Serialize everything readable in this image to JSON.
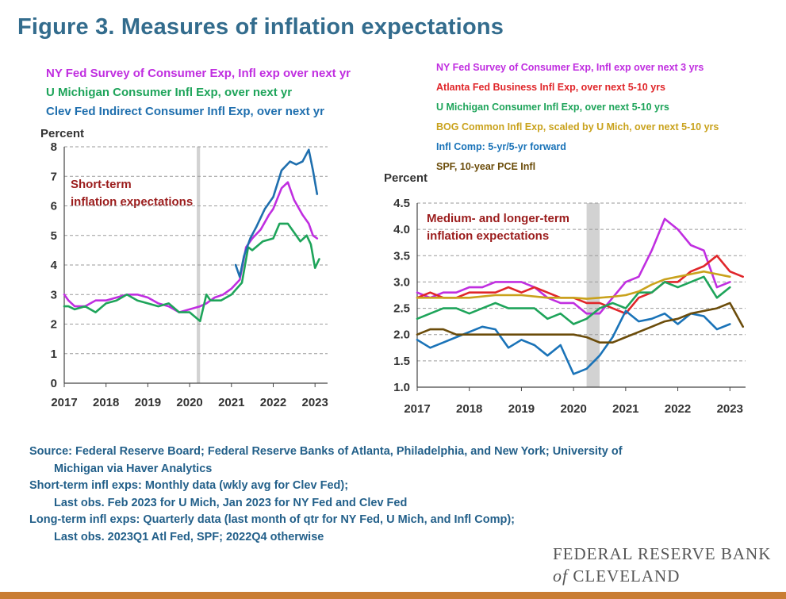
{
  "title": "Figure 3. Measures of inflation expectations",
  "colors": {
    "title": "#336c8d",
    "nyfed": "#c02ee0",
    "umich": "#1ea45a",
    "clev": "#1f6fae",
    "atl": "#e0262a",
    "bog": "#c9a21c",
    "infl_comp": "#1a73b8",
    "spf": "#6b4c0a",
    "annotation": "#9b1c1c",
    "recession": "#d2d2d2",
    "footer_bar": "#c97d33"
  },
  "chart_data": [
    {
      "type": "line",
      "id": "short",
      "ylabel": "Percent",
      "annotation": [
        "Short-term",
        "inflation expectations"
      ],
      "ylim": [
        0,
        8
      ],
      "yticks": [
        0,
        1,
        2,
        3,
        4,
        5,
        6,
        7,
        8
      ],
      "xlim": [
        2017,
        2023.3
      ],
      "xticks": [
        2017,
        2018,
        2019,
        2020,
        2021,
        2022,
        2023
      ],
      "grid": "dashed",
      "legend": "top-left",
      "recession": [
        2020.17,
        2020.25
      ],
      "series": [
        {
          "name": "NY Fed Survey of Consumer Exp, Infl exp over next yr",
          "color_key": "nyfed",
          "points": [
            [
              2017.0,
              3.0
            ],
            [
              2017.1,
              2.8
            ],
            [
              2017.25,
              2.6
            ],
            [
              2017.5,
              2.6
            ],
            [
              2017.75,
              2.8
            ],
            [
              2018.0,
              2.8
            ],
            [
              2018.25,
              2.9
            ],
            [
              2018.5,
              3.0
            ],
            [
              2018.75,
              3.0
            ],
            [
              2019.0,
              2.9
            ],
            [
              2019.25,
              2.7
            ],
            [
              2019.5,
              2.6
            ],
            [
              2019.75,
              2.4
            ],
            [
              2020.0,
              2.5
            ],
            [
              2020.25,
              2.6
            ],
            [
              2020.4,
              2.7
            ],
            [
              2020.6,
              2.9
            ],
            [
              2020.8,
              3.0
            ],
            [
              2021.0,
              3.2
            ],
            [
              2021.2,
              3.5
            ],
            [
              2021.35,
              4.6
            ],
            [
              2021.5,
              4.9
            ],
            [
              2021.7,
              5.2
            ],
            [
              2021.9,
              5.7
            ],
            [
              2022.0,
              5.9
            ],
            [
              2022.2,
              6.6
            ],
            [
              2022.35,
              6.8
            ],
            [
              2022.5,
              6.2
            ],
            [
              2022.7,
              5.7
            ],
            [
              2022.85,
              5.4
            ],
            [
              2022.95,
              5.0
            ],
            [
              2023.05,
              4.9
            ]
          ]
        },
        {
          "name": "U Michigan Consumer Infl Exp, over next yr",
          "color_key": "umich",
          "points": [
            [
              2017.0,
              2.6
            ],
            [
              2017.1,
              2.6
            ],
            [
              2017.25,
              2.5
            ],
            [
              2017.5,
              2.6
            ],
            [
              2017.75,
              2.4
            ],
            [
              2018.0,
              2.7
            ],
            [
              2018.25,
              2.8
            ],
            [
              2018.5,
              3.0
            ],
            [
              2018.75,
              2.8
            ],
            [
              2019.0,
              2.7
            ],
            [
              2019.25,
              2.6
            ],
            [
              2019.5,
              2.7
            ],
            [
              2019.75,
              2.4
            ],
            [
              2020.0,
              2.4
            ],
            [
              2020.25,
              2.1
            ],
            [
              2020.4,
              3.0
            ],
            [
              2020.5,
              2.8
            ],
            [
              2020.75,
              2.8
            ],
            [
              2021.0,
              3.0
            ],
            [
              2021.25,
              3.4
            ],
            [
              2021.4,
              4.6
            ],
            [
              2021.5,
              4.5
            ],
            [
              2021.75,
              4.8
            ],
            [
              2022.0,
              4.9
            ],
            [
              2022.15,
              5.4
            ],
            [
              2022.35,
              5.4
            ],
            [
              2022.5,
              5.1
            ],
            [
              2022.65,
              4.8
            ],
            [
              2022.8,
              5.0
            ],
            [
              2022.9,
              4.7
            ],
            [
              2023.0,
              3.9
            ],
            [
              2023.1,
              4.2
            ]
          ]
        },
        {
          "name": "Clev Fed Indirect Consumer Infl Exp, over next yr",
          "color_key": "clev",
          "points": [
            [
              2021.1,
              4.0
            ],
            [
              2021.2,
              3.6
            ],
            [
              2021.3,
              4.3
            ],
            [
              2021.45,
              4.9
            ],
            [
              2021.6,
              5.3
            ],
            [
              2021.8,
              5.9
            ],
            [
              2022.0,
              6.3
            ],
            [
              2022.2,
              7.2
            ],
            [
              2022.4,
              7.5
            ],
            [
              2022.55,
              7.4
            ],
            [
              2022.7,
              7.5
            ],
            [
              2022.85,
              7.9
            ],
            [
              2022.95,
              7.2
            ],
            [
              2023.05,
              6.4
            ]
          ]
        }
      ]
    },
    {
      "type": "line",
      "id": "long",
      "ylabel": "Percent",
      "annotation": [
        "Medium- and longer-term",
        "inflation expectations"
      ],
      "ylim": [
        1.0,
        4.5
      ],
      "yticks": [
        "1.0",
        "1.5",
        "2.0",
        "2.5",
        "3.0",
        "3.5",
        "4.0",
        "4.5"
      ],
      "xlim": [
        2017,
        2023.3
      ],
      "xticks": [
        2017,
        2018,
        2019,
        2020,
        2021,
        2022,
        2023
      ],
      "grid": "dashed",
      "legend": "top",
      "recession": [
        2020.25,
        2020.5
      ],
      "series": [
        {
          "name": "NY Fed Survey of Consumer Exp, Infl exp over next 3 yrs",
          "color_key": "nyfed",
          "points": [
            [
              2017.0,
              2.8
            ],
            [
              2017.25,
              2.7
            ],
            [
              2017.5,
              2.8
            ],
            [
              2017.75,
              2.8
            ],
            [
              2018.0,
              2.9
            ],
            [
              2018.25,
              2.9
            ],
            [
              2018.5,
              3.0
            ],
            [
              2018.75,
              3.0
            ],
            [
              2019.0,
              3.0
            ],
            [
              2019.25,
              2.9
            ],
            [
              2019.5,
              2.7
            ],
            [
              2019.75,
              2.6
            ],
            [
              2020.0,
              2.6
            ],
            [
              2020.25,
              2.4
            ],
            [
              2020.5,
              2.4
            ],
            [
              2020.75,
              2.7
            ],
            [
              2021.0,
              3.0
            ],
            [
              2021.25,
              3.1
            ],
            [
              2021.5,
              3.6
            ],
            [
              2021.75,
              4.2
            ],
            [
              2022.0,
              4.0
            ],
            [
              2022.25,
              3.7
            ],
            [
              2022.5,
              3.6
            ],
            [
              2022.75,
              2.9
            ],
            [
              2023.0,
              3.0
            ]
          ]
        },
        {
          "name": "Atlanta Fed Business Infl Exp, over next 5-10 yrs",
          "color_key": "atl",
          "points": [
            [
              2017.0,
              2.7
            ],
            [
              2017.25,
              2.8
            ],
            [
              2017.5,
              2.7
            ],
            [
              2017.75,
              2.7
            ],
            [
              2018.0,
              2.8
            ],
            [
              2018.25,
              2.8
            ],
            [
              2018.5,
              2.8
            ],
            [
              2018.75,
              2.9
            ],
            [
              2019.0,
              2.8
            ],
            [
              2019.25,
              2.9
            ],
            [
              2019.5,
              2.8
            ],
            [
              2019.75,
              2.7
            ],
            [
              2020.0,
              2.7
            ],
            [
              2020.25,
              2.6
            ],
            [
              2020.5,
              2.6
            ],
            [
              2020.75,
              2.5
            ],
            [
              2021.0,
              2.4
            ],
            [
              2021.25,
              2.7
            ],
            [
              2021.5,
              2.8
            ],
            [
              2021.75,
              3.0
            ],
            [
              2022.0,
              3.0
            ],
            [
              2022.25,
              3.2
            ],
            [
              2022.5,
              3.3
            ],
            [
              2022.75,
              3.5
            ],
            [
              2023.0,
              3.2
            ],
            [
              2023.25,
              3.1
            ]
          ]
        },
        {
          "name": "U Michigan Consumer Infl Exp, over next 5-10 yrs",
          "color_key": "umich",
          "points": [
            [
              2017.0,
              2.3
            ],
            [
              2017.25,
              2.4
            ],
            [
              2017.5,
              2.5
            ],
            [
              2017.75,
              2.5
            ],
            [
              2018.0,
              2.4
            ],
            [
              2018.25,
              2.5
            ],
            [
              2018.5,
              2.6
            ],
            [
              2018.75,
              2.5
            ],
            [
              2019.0,
              2.5
            ],
            [
              2019.25,
              2.5
            ],
            [
              2019.5,
              2.3
            ],
            [
              2019.75,
              2.4
            ],
            [
              2020.0,
              2.2
            ],
            [
              2020.25,
              2.3
            ],
            [
              2020.5,
              2.5
            ],
            [
              2020.75,
              2.6
            ],
            [
              2021.0,
              2.5
            ],
            [
              2021.25,
              2.8
            ],
            [
              2021.5,
              2.8
            ],
            [
              2021.75,
              3.0
            ],
            [
              2022.0,
              2.9
            ],
            [
              2022.25,
              3.0
            ],
            [
              2022.5,
              3.1
            ],
            [
              2022.75,
              2.7
            ],
            [
              2023.0,
              2.9
            ]
          ]
        },
        {
          "name": "BOG Common Infl Exp, scaled by U Mich, over next 5-10 yrs",
          "color_key": "bog",
          "points": [
            [
              2017.0,
              2.7
            ],
            [
              2017.5,
              2.7
            ],
            [
              2018.0,
              2.7
            ],
            [
              2018.5,
              2.75
            ],
            [
              2019.0,
              2.75
            ],
            [
              2019.5,
              2.7
            ],
            [
              2020.0,
              2.7
            ],
            [
              2020.25,
              2.68
            ],
            [
              2020.5,
              2.7
            ],
            [
              2020.75,
              2.72
            ],
            [
              2021.0,
              2.75
            ],
            [
              2021.25,
              2.82
            ],
            [
              2021.5,
              2.95
            ],
            [
              2021.75,
              3.05
            ],
            [
              2022.0,
              3.1
            ],
            [
              2022.25,
              3.15
            ],
            [
              2022.5,
              3.2
            ],
            [
              2022.75,
              3.15
            ],
            [
              2023.0,
              3.1
            ]
          ]
        },
        {
          "name": "Infl Comp: 5-yr/5-yr forward",
          "color_key": "infl_comp",
          "points": [
            [
              2017.0,
              1.9
            ],
            [
              2017.25,
              1.75
            ],
            [
              2017.5,
              1.85
            ],
            [
              2017.75,
              1.95
            ],
            [
              2018.0,
              2.05
            ],
            [
              2018.25,
              2.15
            ],
            [
              2018.5,
              2.1
            ],
            [
              2018.75,
              1.75
            ],
            [
              2019.0,
              1.9
            ],
            [
              2019.25,
              1.8
            ],
            [
              2019.5,
              1.6
            ],
            [
              2019.75,
              1.8
            ],
            [
              2020.0,
              1.25
            ],
            [
              2020.25,
              1.35
            ],
            [
              2020.5,
              1.6
            ],
            [
              2020.75,
              1.95
            ],
            [
              2021.0,
              2.45
            ],
            [
              2021.25,
              2.25
            ],
            [
              2021.5,
              2.3
            ],
            [
              2021.75,
              2.4
            ],
            [
              2022.0,
              2.2
            ],
            [
              2022.25,
              2.4
            ],
            [
              2022.5,
              2.35
            ],
            [
              2022.75,
              2.1
            ],
            [
              2023.0,
              2.2
            ]
          ]
        },
        {
          "name": "SPF, 10-year PCE Infl",
          "color_key": "spf",
          "points": [
            [
              2017.0,
              2.0
            ],
            [
              2017.25,
              2.1
            ],
            [
              2017.5,
              2.1
            ],
            [
              2017.75,
              2.0
            ],
            [
              2018.0,
              2.0
            ],
            [
              2018.5,
              2.0
            ],
            [
              2019.0,
              2.0
            ],
            [
              2019.5,
              2.0
            ],
            [
              2020.0,
              2.0
            ],
            [
              2020.25,
              1.95
            ],
            [
              2020.5,
              1.85
            ],
            [
              2020.75,
              1.85
            ],
            [
              2021.0,
              1.95
            ],
            [
              2021.25,
              2.05
            ],
            [
              2021.5,
              2.15
            ],
            [
              2021.75,
              2.25
            ],
            [
              2022.0,
              2.3
            ],
            [
              2022.25,
              2.4
            ],
            [
              2022.5,
              2.45
            ],
            [
              2022.75,
              2.5
            ],
            [
              2023.0,
              2.6
            ],
            [
              2023.25,
              2.15
            ]
          ]
        }
      ]
    }
  ],
  "notes": {
    "source_1": "Source: Federal Reserve Board; Federal Reserve Banks of Atlanta, Philadelphia, and New York; University of",
    "source_2": "Michigan via Haver Analytics",
    "short_1": "Short-term infl exps: Monthly data (wkly avg for Clev Fed);",
    "short_2": "Last obs. Feb 2023 for U Mich, Jan 2023 for NY Fed and Clev Fed",
    "long_1": "Long-term infl exps: Quarterly data (last month of qtr for NY Fed, U Mich, and Infl Comp);",
    "long_2": "Last obs. 2023Q1 Atl Fed, SPF; 2022Q4 otherwise"
  },
  "logo": {
    "line1": "FEDERAL RESERVE BANK",
    "of": "of",
    "line2": "CLEVELAND"
  }
}
